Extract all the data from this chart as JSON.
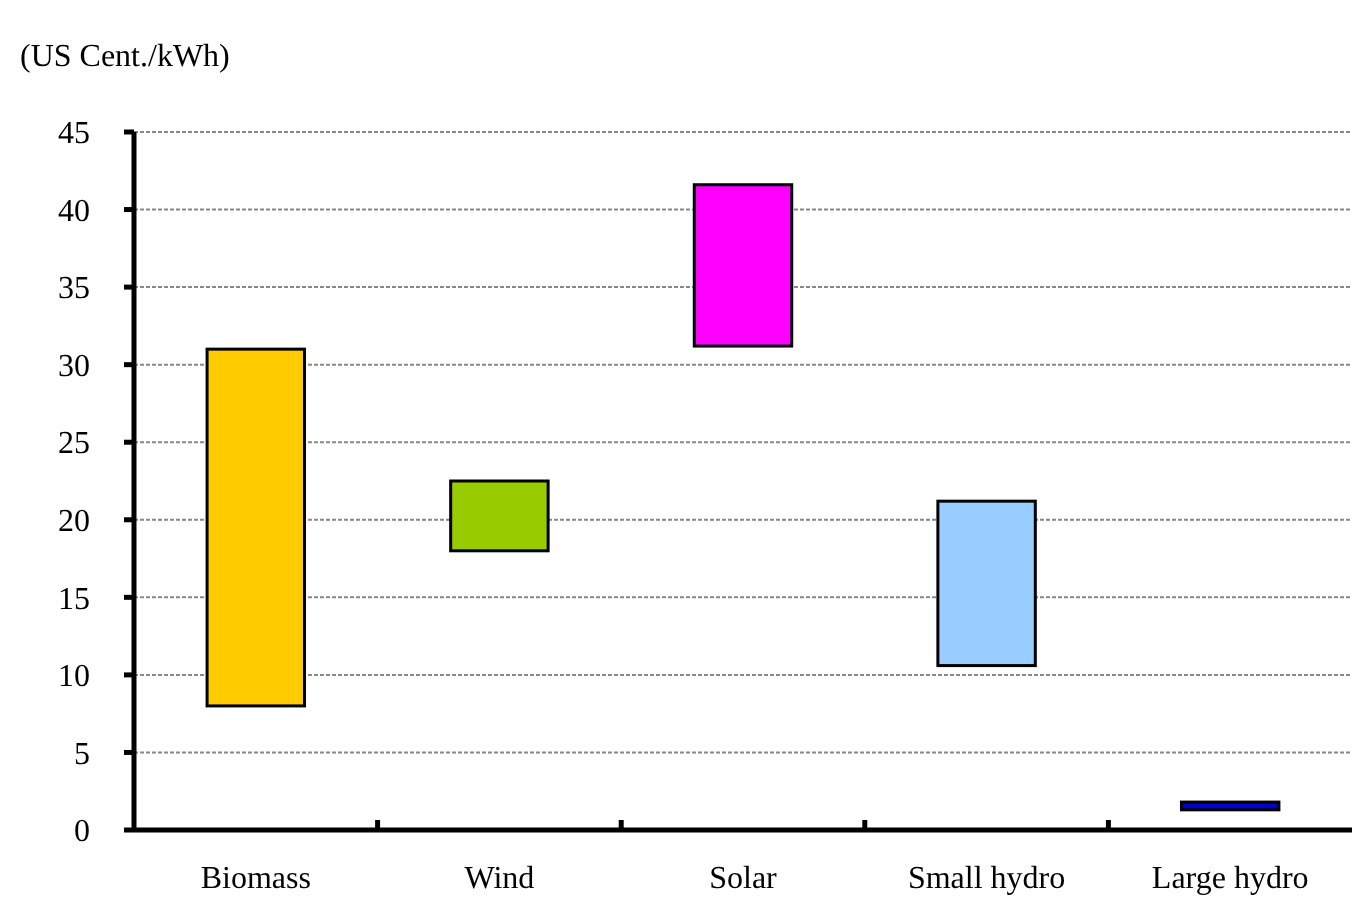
{
  "chart_data": {
    "type": "bar",
    "ylabel": "(US Cent./kWh)",
    "categories": [
      "Biomass",
      "Wind",
      "Solar",
      "Small hydro",
      "Large hydro"
    ],
    "base": [
      8,
      18,
      31.2,
      10.6,
      1.3
    ],
    "values": [
      23,
      4.5,
      10.4,
      10.6,
      0.5
    ],
    "colors": [
      "#ffcc00",
      "#99cc00",
      "#ff00ff",
      "#99ccff",
      "#0000cc"
    ],
    "ylim": [
      0,
      45
    ],
    "yticks": [
      0,
      5,
      10,
      15,
      20,
      25,
      30,
      35,
      40,
      45
    ],
    "grid": "y"
  }
}
